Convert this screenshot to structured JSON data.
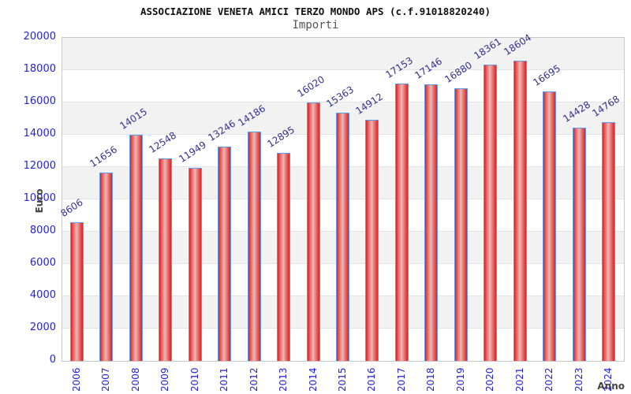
{
  "page": {
    "title": "ASSOCIAZIONE VENETA AMICI TERZO MONDO APS (c.f.91018820240)",
    "subtitle": "Importi"
  },
  "chart_data": {
    "type": "bar",
    "title": "ASSOCIAZIONE VENETA AMICI TERZO MONDO APS (c.f.91018820240)",
    "subtitle": "Importi",
    "xlabel": "Anno",
    "ylabel": "Euro",
    "categories": [
      "2006",
      "2007",
      "2008",
      "2009",
      "2010",
      "2011",
      "2012",
      "2013",
      "2014",
      "2015",
      "2016",
      "2017",
      "2018",
      "2019",
      "2020",
      "2021",
      "2022",
      "2023",
      "2024"
    ],
    "values": [
      8606,
      11656,
      14015,
      12548,
      11949,
      13246,
      14186,
      12895,
      16020,
      15363,
      14912,
      17153,
      17146,
      16880,
      18361,
      18604,
      16695,
      14428,
      14768
    ],
    "ylim": [
      0,
      20000
    ],
    "ytick_interval": 2000,
    "grid": "alternating-horizontal-bands",
    "legend": "none",
    "colors": {
      "bar_fill": "#d92222",
      "bar_fill_highlight": "#f0b5b5",
      "bar_border": "#5f9de8",
      "axis_tick_label": "#2323d9",
      "value_label": "#32328f",
      "band_gray": "#f2f2f2",
      "band_white": "#ffffff",
      "plot_border": "#c9c9c9",
      "axis_title": "#444444",
      "title": "#111111",
      "subtitle": "#555555"
    }
  }
}
